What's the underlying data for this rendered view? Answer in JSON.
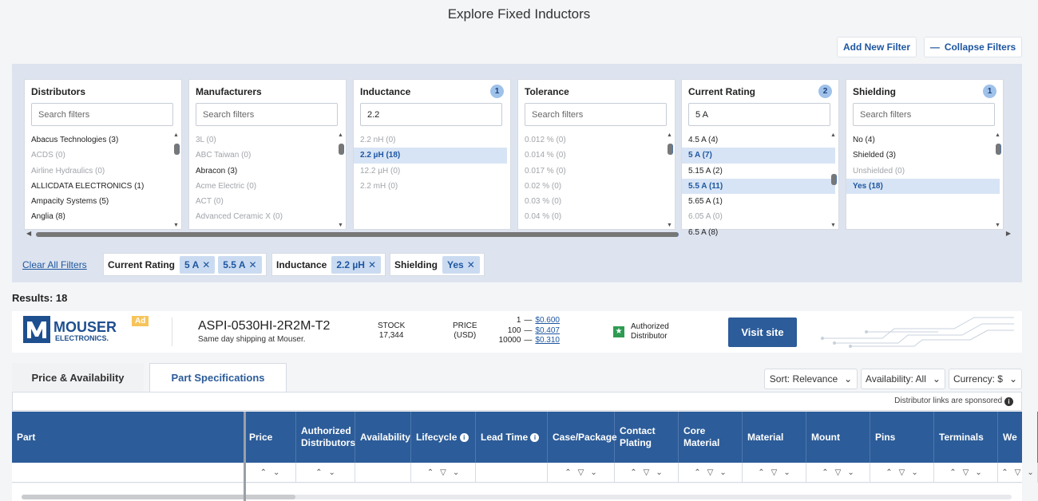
{
  "page": {
    "title": "Explore Fixed Inductors"
  },
  "top_buttons": {
    "add_filter": "Add New Filter",
    "collapse_filters": "Collapse Filters"
  },
  "filters": [
    {
      "name": "Distributors",
      "count": "",
      "search_value": "",
      "placeholder": "Search filters",
      "items": [
        {
          "label": "Abacus Technologies (3)",
          "state": "normal"
        },
        {
          "label": "ACDS (0)",
          "state": "dim"
        },
        {
          "label": "Airline Hydraulics (0)",
          "state": "dim"
        },
        {
          "label": "ALLICDATA ELECTRONICS (1)",
          "state": "normal"
        },
        {
          "label": "Ampacity Systems (5)",
          "state": "normal"
        },
        {
          "label": "Anglia (8)",
          "state": "normal"
        }
      ]
    },
    {
      "name": "Manufacturers",
      "count": "",
      "search_value": "",
      "placeholder": "Search filters",
      "items": [
        {
          "label": "3L (0)",
          "state": "dim"
        },
        {
          "label": "ABC Taiwan (0)",
          "state": "dim"
        },
        {
          "label": "Abracon (3)",
          "state": "normal"
        },
        {
          "label": "Acme Electric (0)",
          "state": "dim"
        },
        {
          "label": "ACT (0)",
          "state": "dim"
        },
        {
          "label": "Advanced Ceramic X (0)",
          "state": "dim"
        }
      ]
    },
    {
      "name": "Inductance",
      "count": "1",
      "search_value": "2.2",
      "placeholder": "Search filters",
      "items": [
        {
          "label": "2.2 nH (0)",
          "state": "dim"
        },
        {
          "label": "2.2 µH (18)",
          "state": "sel"
        },
        {
          "label": "12.2 µH (0)",
          "state": "dim"
        },
        {
          "label": "2.2 mH (0)",
          "state": "dim"
        }
      ]
    },
    {
      "name": "Tolerance",
      "count": "",
      "search_value": "",
      "placeholder": "Search filters",
      "items": [
        {
          "label": "0.012 % (0)",
          "state": "dim"
        },
        {
          "label": "0.014 % (0)",
          "state": "dim"
        },
        {
          "label": "0.017 % (0)",
          "state": "dim"
        },
        {
          "label": "0.02 % (0)",
          "state": "dim"
        },
        {
          "label": "0.03 % (0)",
          "state": "dim"
        },
        {
          "label": "0.04 % (0)",
          "state": "dim"
        }
      ]
    },
    {
      "name": "Current Rating",
      "count": "2",
      "search_value": "5 A",
      "placeholder": "Search filters",
      "items": [
        {
          "label": "4.5 A (4)",
          "state": "normal"
        },
        {
          "label": "5 A (7)",
          "state": "sel"
        },
        {
          "label": "5.15 A (2)",
          "state": "normal"
        },
        {
          "label": "5.5 A (11)",
          "state": "sel"
        },
        {
          "label": "5.65 A (1)",
          "state": "normal"
        },
        {
          "label": "6.05 A (0)",
          "state": "dim"
        },
        {
          "label": "6.5 A (8)",
          "state": "normal"
        }
      ]
    },
    {
      "name": "Shielding",
      "count": "1",
      "search_value": "",
      "placeholder": "Search filters",
      "items": [
        {
          "label": "No (4)",
          "state": "normal"
        },
        {
          "label": "Shielded (3)",
          "state": "normal"
        },
        {
          "label": "Unshielded (0)",
          "state": "dim"
        },
        {
          "label": "Yes (18)",
          "state": "sel"
        }
      ]
    }
  ],
  "active_filters": {
    "clear_all": "Clear All Filters",
    "groups": [
      {
        "name": "Current Rating",
        "values": [
          "5 A",
          "5.5 A"
        ]
      },
      {
        "name": "Inductance",
        "values": [
          "2.2 µH"
        ]
      },
      {
        "name": "Shielding",
        "values": [
          "Yes"
        ]
      }
    ]
  },
  "results": {
    "label": "Results: 18"
  },
  "ad": {
    "brand_top": "MOUSER",
    "brand_bottom": "ELECTRONICS.",
    "badge": "Ad",
    "part_number": "ASPI-0530HI-2R2M-T2",
    "shipping": "Same day shipping at Mouser.",
    "stock_label": "STOCK",
    "stock_value": "17,344",
    "price_label": "PRICE",
    "price_unit": "(USD)",
    "tiers": [
      {
        "qty": "1",
        "price": "$0.600"
      },
      {
        "qty": "100",
        "price": "$0.407"
      },
      {
        "qty": "10000",
        "price": "$0.310"
      }
    ],
    "auth_line1": "Authorized",
    "auth_line2": "Distributor",
    "visit": "Visit site"
  },
  "tabs": [
    {
      "label": "Price & Availability",
      "active": false
    },
    {
      "label": "Part Specifications",
      "active": true
    }
  ],
  "controls": {
    "sort": "Sort: Relevance",
    "availability": "Availability: All",
    "currency": "Currency: $"
  },
  "sponsored_note": "Distributor links are sponsored",
  "table": {
    "columns": [
      "Part",
      "Price",
      "Authorized Distributors",
      "Availability",
      "Lifecycle",
      "Lead Time",
      "Case/Package",
      "Contact Plating",
      "Core Material",
      "Material",
      "Mount",
      "Pins",
      "Terminals",
      "We"
    ]
  }
}
